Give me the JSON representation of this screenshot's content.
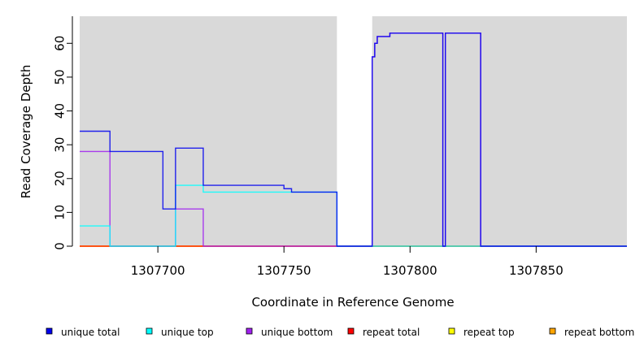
{
  "chart_data": {
    "type": "line",
    "title": "",
    "xlabel": "Coordinate in Reference Genome",
    "ylabel": "Read Coverage Depth",
    "xlim": [
      1307669,
      1307886
    ],
    "ylim": [
      0,
      68
    ],
    "x_ticks": [
      1307700,
      1307750,
      1307800,
      1307850
    ],
    "x_tick_labels": [
      "1307700",
      "1307750",
      "1307800",
      "1307850"
    ],
    "y_ticks": [
      0,
      10,
      20,
      30,
      40,
      50,
      60
    ],
    "y_tick_labels": [
      "0",
      "10",
      "20",
      "30",
      "40",
      "50",
      "60"
    ],
    "background_color": "#d9d9d9",
    "gap_regions": [
      [
        1307771,
        1307785
      ]
    ],
    "series": [
      {
        "name": "unique total",
        "color": "#0000ee",
        "points": [
          [
            1307669,
            34
          ],
          [
            1307681,
            34
          ],
          [
            1307681,
            28
          ],
          [
            1307702,
            28
          ],
          [
            1307702,
            11
          ],
          [
            1307707,
            11
          ],
          [
            1307707,
            29
          ],
          [
            1307718,
            29
          ],
          [
            1307718,
            18
          ],
          [
            1307750,
            18
          ],
          [
            1307750,
            17
          ],
          [
            1307753,
            17
          ],
          [
            1307753,
            16
          ],
          [
            1307771,
            16
          ],
          [
            1307771,
            0
          ],
          [
            1307785,
            0
          ],
          [
            1307785,
            56
          ],
          [
            1307786,
            56
          ],
          [
            1307786,
            60
          ],
          [
            1307787,
            60
          ],
          [
            1307787,
            62
          ],
          [
            1307792,
            62
          ],
          [
            1307792,
            63
          ],
          [
            1307813,
            63
          ],
          [
            1307813,
            0
          ],
          [
            1307814,
            0
          ],
          [
            1307814,
            63
          ],
          [
            1307828,
            63
          ],
          [
            1307828,
            0
          ],
          [
            1307886,
            0
          ]
        ]
      },
      {
        "name": "unique top",
        "color": "#00ffff",
        "points": [
          [
            1307669,
            6
          ],
          [
            1307681,
            6
          ],
          [
            1307681,
            0
          ],
          [
            1307707,
            0
          ],
          [
            1307707,
            18
          ],
          [
            1307718,
            18
          ],
          [
            1307718,
            16
          ],
          [
            1307771,
            16
          ],
          [
            1307771,
            0
          ],
          [
            1307886,
            0
          ]
        ]
      },
      {
        "name": "unique bottom",
        "color": "#a020f0",
        "points": [
          [
            1307669,
            28
          ],
          [
            1307681,
            28
          ],
          [
            1307681,
            0
          ],
          [
            1307707,
            0
          ],
          [
            1307707,
            11
          ],
          [
            1307718,
            11
          ],
          [
            1307718,
            0
          ],
          [
            1307771,
            0
          ],
          [
            1307785,
            0
          ],
          [
            1307785,
            56
          ],
          [
            1307786,
            56
          ],
          [
            1307786,
            60
          ],
          [
            1307787,
            60
          ],
          [
            1307787,
            62
          ],
          [
            1307792,
            62
          ],
          [
            1307792,
            63
          ],
          [
            1307813,
            63
          ],
          [
            1307813,
            0
          ],
          [
            1307814,
            0
          ],
          [
            1307814,
            63
          ],
          [
            1307828,
            63
          ],
          [
            1307828,
            0
          ],
          [
            1307886,
            0
          ]
        ]
      },
      {
        "name": "repeat total",
        "color": "#ff0000",
        "points": [
          [
            1307669,
            0
          ],
          [
            1307886,
            0
          ]
        ]
      },
      {
        "name": "repeat top",
        "color": "#ffff00",
        "points": [
          [
            1307669,
            0
          ],
          [
            1307886,
            0
          ]
        ]
      },
      {
        "name": "repeat bottom",
        "color": "#ffa500",
        "points": [
          [
            1307669,
            0
          ],
          [
            1307886,
            0
          ]
        ]
      }
    ],
    "legend_position": "bottom"
  }
}
